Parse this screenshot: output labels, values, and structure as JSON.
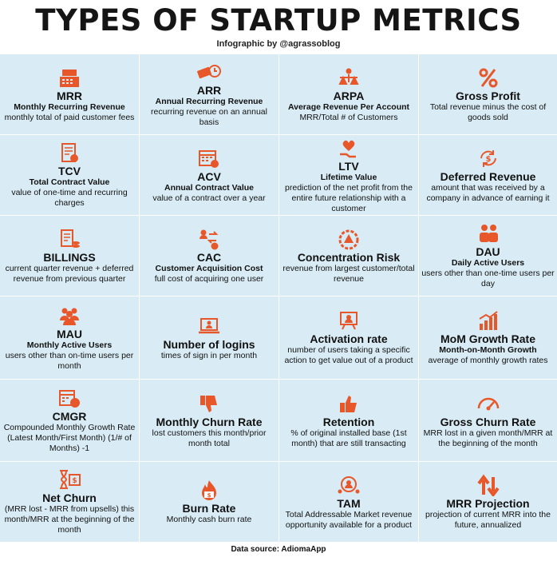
{
  "header": {
    "title": "TYPES OF STARTUP METRICS",
    "byline": "Infographic by @agrassoblog"
  },
  "accent_color": "#e8572a",
  "cell_background": "#d9ecf5",
  "metrics": [
    {
      "name": "MRR",
      "sub": "Monthly Recurring Revenue",
      "desc": "monthly total of paid customer fees",
      "icon": "cash-register-icon"
    },
    {
      "name": "ARR",
      "sub": "Annual Recurring Revenue",
      "desc": "recurring revenue on an annual basis",
      "icon": "money-clock-icon"
    },
    {
      "name": "ARPA",
      "sub": "Average Revenue Per Account",
      "desc": "MRR/Total # of Customers",
      "icon": "person-balance-icon"
    },
    {
      "name": "Gross Profit",
      "sub": "",
      "desc": "Total revenue minus the cost of goods sold",
      "icon": "percent-icon"
    },
    {
      "name": "TCV",
      "sub": "Total Contract Value",
      "desc": "value of one-time and recurring charges",
      "icon": "contract-icon"
    },
    {
      "name": "ACV",
      "sub": "Annual Contract Value",
      "desc": "value of a contract over a year",
      "icon": "calendar-dollar-icon"
    },
    {
      "name": "LTV",
      "sub": "Lifetime Value",
      "desc": "prediction of the net profit from the entire future relationship with a customer",
      "icon": "heart-hand-icon"
    },
    {
      "name": "Deferred Revenue",
      "sub": "",
      "desc": "amount that was received by a company in advance of earning it",
      "icon": "cycle-dollar-icon"
    },
    {
      "name": "BILLINGS",
      "sub": "",
      "desc": "current quarter revenue + deferred revenue from previous quarter",
      "icon": "invoice-coins-icon"
    },
    {
      "name": "CAC",
      "sub": "Customer Acquisition Cost",
      "desc": "full cost of acquiring one user",
      "icon": "person-exchange-icon"
    },
    {
      "name": "Concentration Risk",
      "sub": "",
      "desc": "revenue from largest customer/total revenue",
      "icon": "warning-gear-icon"
    },
    {
      "name": "DAU",
      "sub": "Daily Active Users",
      "desc": "users other than one-time users per day",
      "icon": "users-pair-icon"
    },
    {
      "name": "MAU",
      "sub": "Monthly Active Users",
      "desc": "users other than on-time users per month",
      "icon": "users-group-icon"
    },
    {
      "name": "Number of logins",
      "sub": "",
      "desc": "times of sign in per month",
      "icon": "laptop-user-icon"
    },
    {
      "name": "Activation rate",
      "sub": "",
      "desc": "number of users taking a specific action to get value out of a product",
      "icon": "user-board-icon"
    },
    {
      "name": "MoM Growth Rate",
      "sub": "Month-on-Month Growth",
      "desc": "average of monthly growth rates",
      "icon": "growth-chart-icon"
    },
    {
      "name": "CMGR",
      "sub": "",
      "desc": "Compounded Monthly Growth Rate (Latest Month/First Month) (1/# of Months) -1",
      "icon": "calendar-chart-icon"
    },
    {
      "name": "Monthly Churn Rate",
      "sub": "",
      "desc": "lost customers this month/prior month total",
      "icon": "thumbs-down-icon"
    },
    {
      "name": "Retention",
      "sub": "",
      "desc": "% of original installed base (1st month) that are still transacting",
      "icon": "thumbs-up-icon"
    },
    {
      "name": "Gross Churn Rate",
      "sub": "",
      "desc": "MRR lost in a given month/MRR at the beginning of the month",
      "icon": "gauge-icon"
    },
    {
      "name": "Net Churn",
      "sub": "",
      "desc": "(MRR lost - MRR from upsells) this month/MRR at the beginning of the month",
      "icon": "hourglass-money-icon"
    },
    {
      "name": "Burn Rate",
      "sub": "",
      "desc": "Monthly cash burn rate",
      "icon": "burning-money-icon"
    },
    {
      "name": "TAM",
      "sub": "",
      "desc": "Total Addressable Market revenue opportunity available for a product",
      "icon": "market-people-icon"
    },
    {
      "name": "MRR Projection",
      "sub": "",
      "desc": "projection of current MRR into the future, annualized",
      "icon": "up-down-arrows-icon"
    }
  ],
  "footer": "Data source: AdiomaApp"
}
